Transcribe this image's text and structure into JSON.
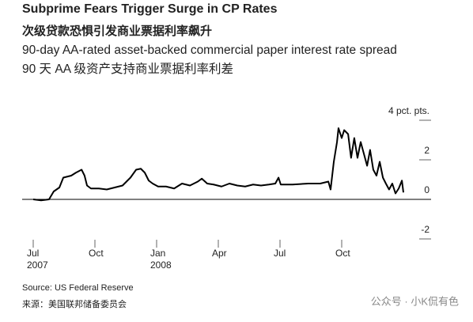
{
  "chart_data": {
    "type": "line",
    "title": "Subprime Fears Trigger Surge in CP Rates",
    "title_zh": "次级贷款恐惧引发商业票据利率飙升",
    "subtitle": "90-day AA-rated asset-backed commercial paper interest rate spread",
    "subtitle_zh": "90 天 AA 级资产支持商业票据利率利差",
    "source": "Source: US Federal Reserve",
    "source_zh": "来源：美国联邦储备委员会",
    "watermark": "公众号 · 小K侃有色",
    "color": "#000000",
    "x": [
      2007.5,
      2007.532,
      2007.564,
      2007.583,
      2007.606,
      2007.622,
      2007.654,
      2007.673,
      2007.696,
      2007.708,
      2007.718,
      2007.734,
      2007.766,
      2007.798,
      2007.83,
      2007.862,
      2007.894,
      2007.917,
      2007.936,
      2007.952,
      2007.968,
      2007.984,
      2008.006,
      2008.038,
      2008.071,
      2008.103,
      2008.135,
      2008.167,
      2008.183,
      2008.205,
      2008.231,
      2008.263,
      2008.295,
      2008.327,
      2008.359,
      2008.391,
      2008.423,
      2008.455,
      2008.481,
      2008.494,
      2008.503,
      2008.551,
      2008.615,
      2008.663,
      2008.696,
      2008.705,
      2008.718,
      2008.731,
      2008.737,
      2008.75,
      2008.76,
      2008.776,
      2008.788,
      2008.801,
      2008.814,
      2008.827,
      2008.84,
      2008.853,
      2008.865,
      2008.878,
      2008.891,
      2008.904,
      2008.917,
      2008.929,
      2008.942,
      2008.955,
      2008.968,
      2008.981,
      2008.994,
      2009.0
    ],
    "values": [
      0,
      -0.05,
      0,
      0.4,
      0.6,
      1.1,
      1.2,
      1.35,
      1.5,
      1.2,
      0.7,
      0.55,
      0.55,
      0.5,
      0.6,
      0.7,
      1.1,
      1.5,
      1.55,
      1.35,
      0.95,
      0.8,
      0.65,
      0.65,
      0.55,
      0.8,
      0.7,
      0.9,
      1.05,
      0.8,
      0.75,
      0.65,
      0.8,
      0.7,
      0.65,
      0.75,
      0.7,
      0.75,
      0.8,
      1.1,
      0.75,
      0.75,
      0.8,
      0.8,
      0.9,
      0.5,
      1.9,
      2.9,
      3.6,
      3.1,
      3.5,
      3.3,
      2.1,
      3.1,
      2.1,
      2.9,
      2.3,
      1.7,
      2.5,
      1.5,
      1.2,
      1.9,
      1.1,
      0.8,
      0.5,
      0.8,
      0.3,
      0.55,
      0.95,
      0.35
    ],
    "xlim": [
      2007.5,
      2009.0
    ],
    "xticks": [
      {
        "value": 2007.5,
        "label": "Jul",
        "year": "2007"
      },
      {
        "value": 2007.75,
        "label": "Oct"
      },
      {
        "value": 2008.0,
        "label": "Jan",
        "year": "2008"
      },
      {
        "value": 2008.25,
        "label": "Apr"
      },
      {
        "value": 2008.5,
        "label": "Jul"
      },
      {
        "value": 2008.75,
        "label": "Oct"
      }
    ],
    "ylim": [
      -2,
      4
    ],
    "yticks": [
      {
        "value": 4,
        "label": "4 pct. pts."
      },
      2,
      0,
      -2
    ]
  }
}
